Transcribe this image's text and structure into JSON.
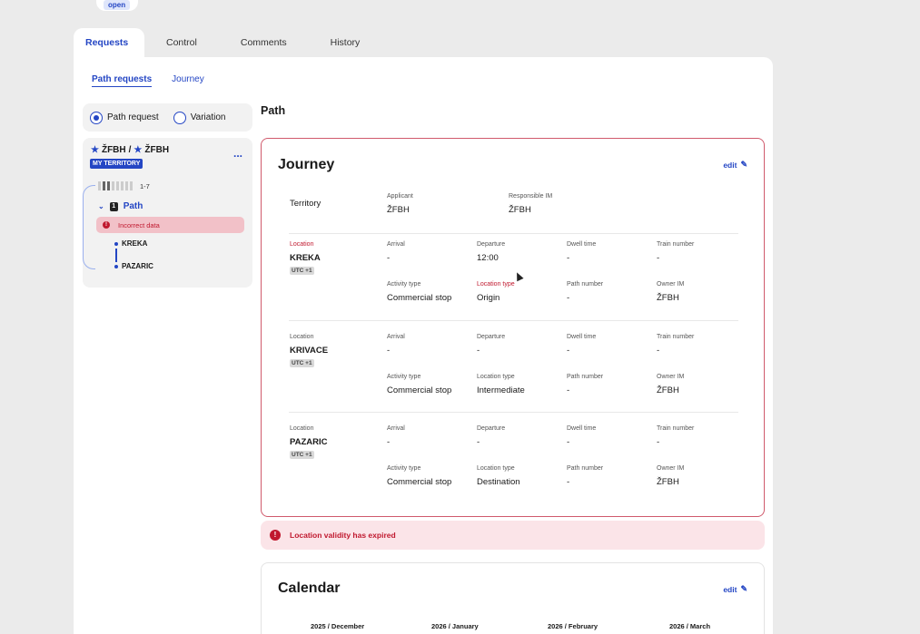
{
  "status_chip": "open",
  "tabs": [
    "Requests",
    "Control",
    "Comments",
    "History"
  ],
  "subtabs": [
    "Path requests",
    "Journey"
  ],
  "radios": {
    "path_request": "Path request",
    "variation": "Variation"
  },
  "tree": {
    "title_a": "ŽFBH",
    "separator": "/",
    "title_b": "ŽFBH",
    "badge": "MY TERRITORY",
    "menu": "...",
    "days": "1-7",
    "path_number": "1",
    "path_label": "Path",
    "error": "Incorrect data",
    "stops": [
      "KREKA",
      "PAZARIC"
    ]
  },
  "path_heading": "Path",
  "journey": {
    "title": "Journey",
    "edit": "edit",
    "territory_label": "Territory",
    "applicant_label": "Applicant",
    "applicant": "ŽFBH",
    "responsible_label": "Responsible IM",
    "responsible": "ŽFBH",
    "labels": {
      "location": "Location",
      "arrival": "Arrival",
      "departure": "Departure",
      "dwell": "Dwell time",
      "train": "Train number",
      "activity": "Activity type",
      "loc_type": "Location type",
      "path_no": "Path number",
      "owner": "Owner IM"
    },
    "stops": [
      {
        "name": "KREKA",
        "utc": "UTC +1",
        "arrival": "-",
        "departure": "12:00",
        "dwell": "-",
        "train": "-",
        "activity": "Commercial stop",
        "loc_type": "Origin",
        "path_no": "-",
        "owner": "ŽFBH"
      },
      {
        "name": "KRIVACE",
        "utc": "UTC +1",
        "arrival": "-",
        "departure": "-",
        "dwell": "-",
        "train": "-",
        "activity": "Commercial stop",
        "loc_type": "Intermediate",
        "path_no": "-",
        "owner": "ŽFBH"
      },
      {
        "name": "PAZARIC",
        "utc": "UTC +1",
        "arrival": "-",
        "departure": "-",
        "dwell": "-",
        "train": "-",
        "activity": "Commercial stop",
        "loc_type": "Destination",
        "path_no": "-",
        "owner": "ŽFBH"
      }
    ]
  },
  "alert": "Location validity has expired",
  "calendar": {
    "title": "Calendar",
    "edit": "edit",
    "months": [
      "2025 / December",
      "2026 / January",
      "2026 / February",
      "2026 / March"
    ]
  },
  "colors": {
    "accent": "#2446c4",
    "error": "#c0182e",
    "error_bg": "#fbe4e8"
  }
}
